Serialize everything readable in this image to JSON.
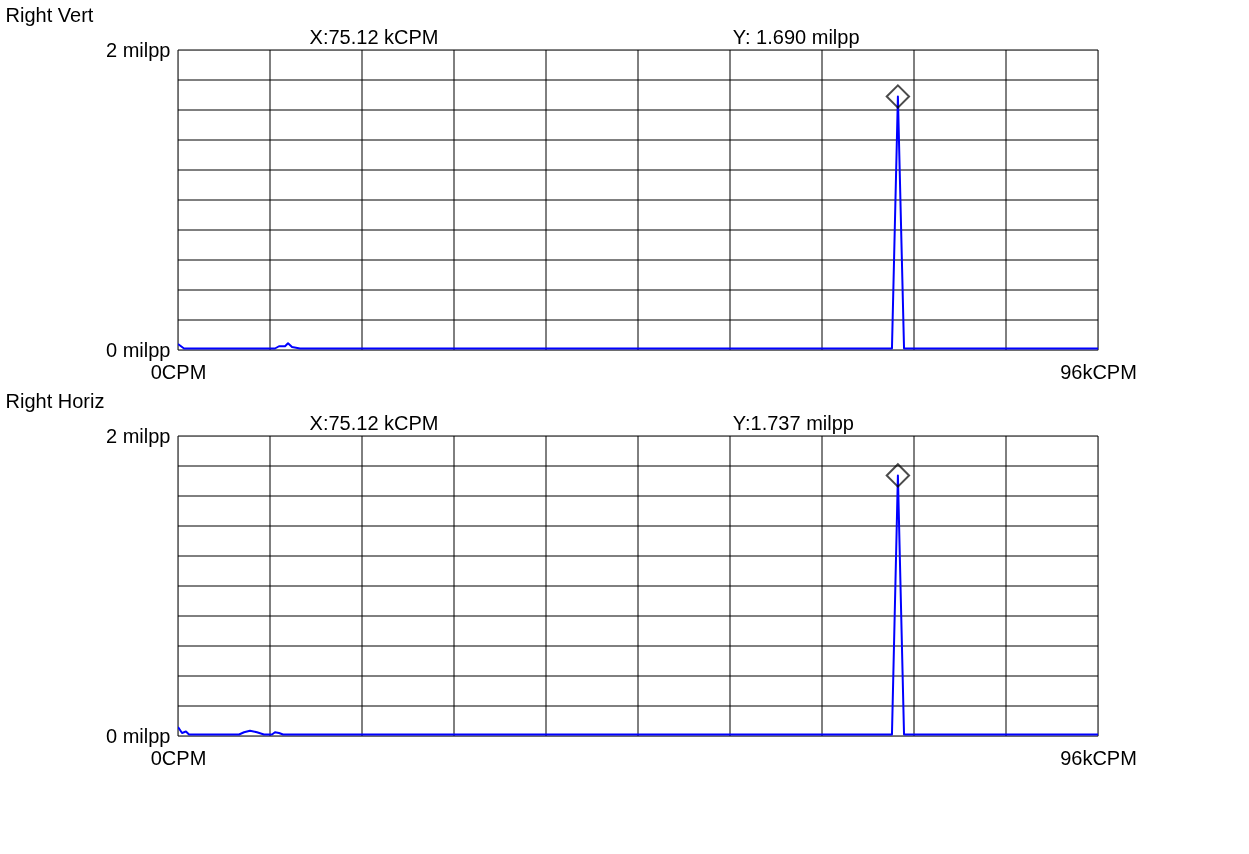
{
  "chart_data": [
    {
      "type": "line",
      "title": "Right Vert",
      "annotations": [
        "X:75.12   kCPM",
        "Y: 1.690  milpp"
      ],
      "xlim": [
        0,
        96
      ],
      "ylim": [
        0,
        2
      ],
      "xticks": [
        {
          "value": 0,
          "label": "0CPM"
        },
        {
          "value": 9.6,
          "label": null
        },
        {
          "value": 19.2,
          "label": null
        },
        {
          "value": 28.8,
          "label": null
        },
        {
          "value": 38.4,
          "label": null
        },
        {
          "value": 48,
          "label": null
        },
        {
          "value": 57.6,
          "label": null
        },
        {
          "value": 67.2,
          "label": null
        },
        {
          "value": 76.8,
          "label": null
        },
        {
          "value": 86.4,
          "label": null
        },
        {
          "value": 96,
          "label": "96kCPM"
        }
      ],
      "yticks": [
        {
          "value": 0,
          "label": "0 milpp"
        },
        {
          "value": 0.2,
          "label": null
        },
        {
          "value": 0.4,
          "label": null
        },
        {
          "value": 0.6,
          "label": null
        },
        {
          "value": 0.8,
          "label": null
        },
        {
          "value": 1,
          "label": null
        },
        {
          "value": 1.2,
          "label": null
        },
        {
          "value": 1.4,
          "label": null
        },
        {
          "value": 1.6,
          "label": null
        },
        {
          "value": 1.8,
          "label": null
        },
        {
          "value": 2,
          "label": "2 milpp"
        }
      ],
      "grid": true,
      "series": [
        {
          "color": "#0000ff",
          "x": [
            0,
            0.63,
            10.12,
            10.54,
            11.17,
            11.48,
            11.9,
            12.73,
            74.5,
            75.12,
            75.76,
            96
          ],
          "values": [
            0.04,
            0.01,
            0.01,
            0.025,
            0.025,
            0.045,
            0.02,
            0.01,
            0.01,
            1.69,
            0.01,
            0.01
          ]
        },
        {
          "type": "scatter",
          "color": "#000000",
          "marker": "diamond",
          "x": [
            75.12
          ],
          "values": [
            1.69
          ]
        }
      ]
    },
    {
      "type": "line",
      "title": "Right Horiz",
      "annotations": [
        "X:75.12   kCPM",
        "Y:1.737  milpp"
      ],
      "xlim": [
        0,
        96
      ],
      "ylim": [
        0,
        2
      ],
      "xticks": [
        {
          "value": 0,
          "label": "0CPM"
        },
        {
          "value": 9.6,
          "label": null
        },
        {
          "value": 19.2,
          "label": null
        },
        {
          "value": 28.8,
          "label": null
        },
        {
          "value": 38.4,
          "label": null
        },
        {
          "value": 48,
          "label": null
        },
        {
          "value": 57.6,
          "label": null
        },
        {
          "value": 67.2,
          "label": null
        },
        {
          "value": 76.8,
          "label": null
        },
        {
          "value": 86.4,
          "label": null
        },
        {
          "value": 96,
          "label": "96kCPM"
        }
      ],
      "yticks": [
        {
          "value": 0,
          "label": "0 milpp"
        },
        {
          "value": 0.2,
          "label": null
        },
        {
          "value": 0.4,
          "label": null
        },
        {
          "value": 0.6,
          "label": null
        },
        {
          "value": 0.8,
          "label": null
        },
        {
          "value": 1,
          "label": null
        },
        {
          "value": 1.2,
          "label": null
        },
        {
          "value": 1.4,
          "label": null
        },
        {
          "value": 1.6,
          "label": null
        },
        {
          "value": 1.8,
          "label": null
        },
        {
          "value": 2,
          "label": "2 milpp"
        }
      ],
      "grid": true,
      "series": [
        {
          "color": "#0000ff",
          "x": [
            0,
            0.42,
            0.83,
            1.15,
            6.37,
            6.89,
            7.51,
            8.24,
            8.97,
            9.81,
            10.12,
            10.54,
            10.96,
            74.5,
            75.12,
            75.76,
            96
          ],
          "values": [
            0.06,
            0.02,
            0.03,
            0.01,
            0.01,
            0.025,
            0.035,
            0.025,
            0.01,
            0.01,
            0.025,
            0.02,
            0.01,
            0.01,
            1.737,
            0.01,
            0.01
          ]
        },
        {
          "type": "scatter",
          "color": "#000000",
          "marker": "diamond",
          "x": [
            75.12
          ],
          "values": [
            1.737
          ]
        }
      ]
    }
  ]
}
